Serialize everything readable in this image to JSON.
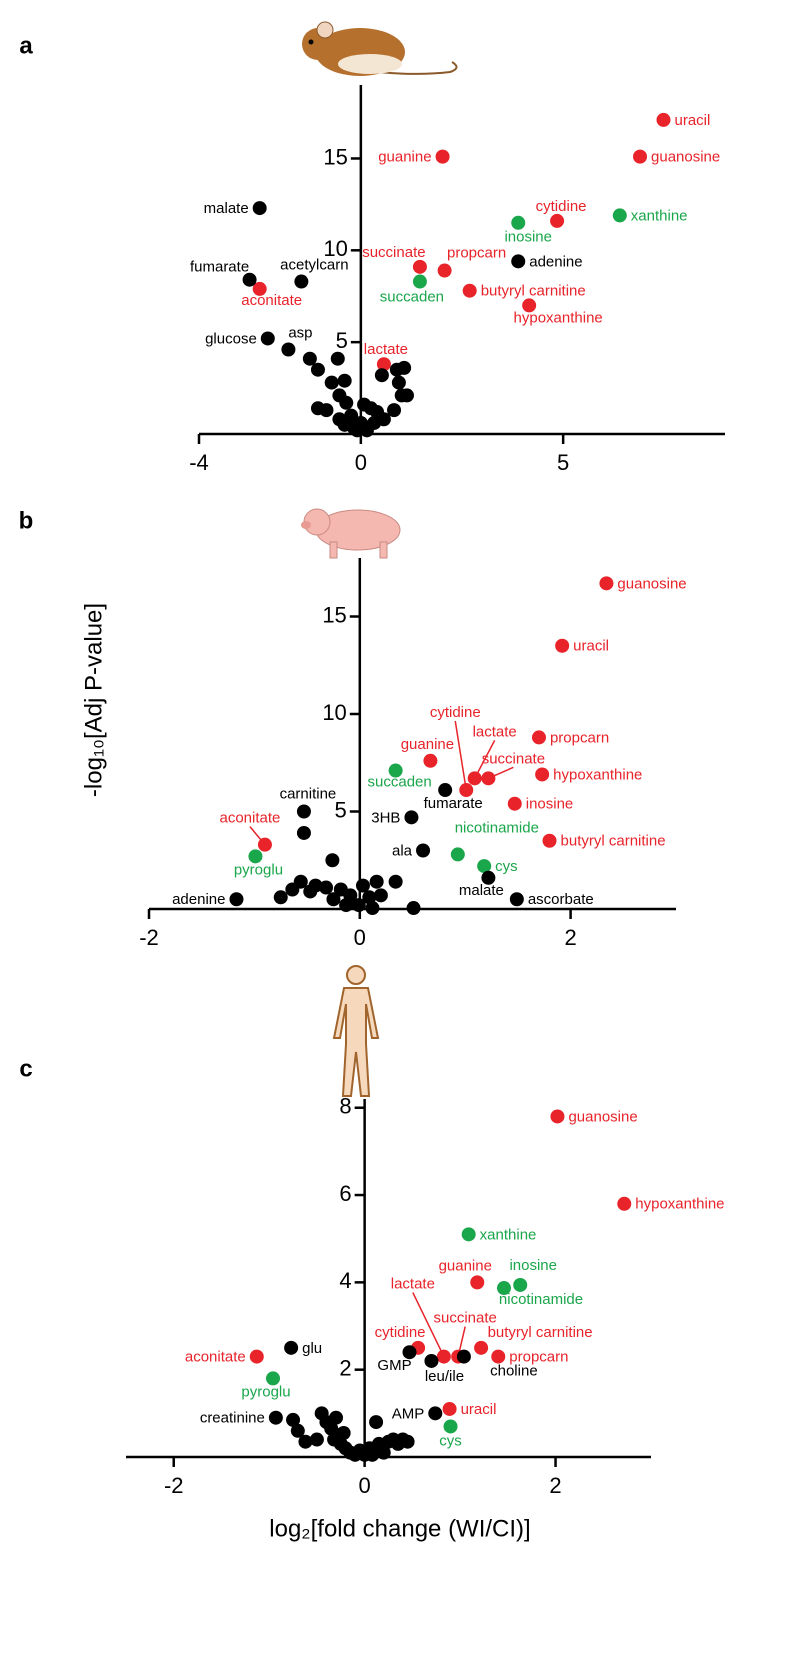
{
  "chart_data": [
    {
      "type": "scatter",
      "panel": "a",
      "xlim": [
        -4,
        9
      ],
      "ylim": [
        0,
        19
      ],
      "xticks": [
        -4,
        0,
        5
      ],
      "yticks": [
        5,
        10,
        15
      ],
      "series": [
        {
          "color": "#e8232a",
          "x": [
            7.48,
            6.9,
            2.02,
            4.85,
            1.46,
            2.07,
            2.69,
            4.16,
            -2.5,
            0.57
          ],
          "values": [
            17.1,
            15.1,
            15.1,
            11.6,
            9.1,
            8.9,
            7.8,
            7.0,
            7.9,
            3.8
          ],
          "labels": [
            "uracil",
            "guanosine",
            "guanine",
            "cytidine",
            "succinate",
            "propcarn",
            "butyryl carnitine",
            "hypoxanthine",
            "aconitate",
            "lactate"
          ]
        },
        {
          "color": "#1aa64b",
          "x": [
            6.4,
            3.89,
            1.46
          ],
          "values": [
            11.9,
            11.5,
            8.3
          ],
          "labels": [
            "xanthine",
            "inosine",
            "succaden"
          ]
        },
        {
          "color": "#000000",
          "x": [
            -2.5,
            3.89,
            -2.75,
            -1.47,
            -2.3,
            -1.79,
            -1.26,
            -1.06,
            -0.57,
            -0.72,
            -0.4,
            -0.53,
            -1.06,
            -0.85,
            -0.36,
            -0.24,
            -0.53,
            -0.16,
            0.0,
            0.15,
            0.33,
            0.25,
            0.4,
            0.57,
            0.89,
            1.07,
            0.94,
            1.01,
            1.14,
            0.82,
            0.08,
            -0.09,
            -0.4,
            0.52
          ],
          "values": [
            12.3,
            9.4,
            8.4,
            8.3,
            5.2,
            4.6,
            4.1,
            3.5,
            4.1,
            2.8,
            2.9,
            2.1,
            1.4,
            1.3,
            1.7,
            1.0,
            0.8,
            0.3,
            0.6,
            0.2,
            0.6,
            1.4,
            1.2,
            0.8,
            3.5,
            3.6,
            2.8,
            2.1,
            2.1,
            1.3,
            1.6,
            0.2,
            0.5,
            3.2
          ],
          "labels": [
            "malate",
            "adenine",
            "fumarate",
            "acetylcarn",
            "glucose",
            "asp",
            null,
            null,
            null,
            null,
            null,
            null,
            null,
            null,
            null,
            null,
            null,
            null,
            null,
            null,
            null,
            null,
            null,
            null,
            null,
            null,
            null,
            null,
            null,
            null,
            null,
            null,
            null,
            null
          ]
        }
      ]
    },
    {
      "type": "scatter",
      "panel": "b",
      "ylabel": "-log₁₀[Adj P-value]",
      "xlim": [
        -2,
        3
      ],
      "ylim": [
        0,
        18
      ],
      "xticks": [
        -2,
        0,
        2
      ],
      "yticks": [
        5,
        10,
        15
      ],
      "series": [
        {
          "color": "#e8232a",
          "x": [
            2.34,
            1.92,
            1.01,
            1.09,
            1.22,
            0.67,
            1.7,
            1.73,
            1.47,
            1.8,
            -0.9
          ],
          "values": [
            16.7,
            13.5,
            6.1,
            6.7,
            6.7,
            7.6,
            8.8,
            6.9,
            5.4,
            3.5,
            3.3
          ],
          "labels": [
            "guanosine",
            "uracil",
            "cytidine",
            "lactate",
            "succinate",
            "guanine",
            "propcarn",
            "hypoxanthine",
            "inosine",
            "butyryl carnitine",
            "aconitate"
          ]
        },
        {
          "color": "#1aa64b",
          "x": [
            0.34,
            0.93,
            1.18,
            -0.99
          ],
          "values": [
            7.1,
            2.8,
            2.2,
            2.7
          ],
          "labels": [
            "succaden",
            "nicotinamide",
            "cys",
            "pyroglu"
          ]
        },
        {
          "color": "#000000",
          "x": [
            -0.53,
            0.81,
            0.49,
            0.6,
            1.22,
            1.49,
            -1.17,
            -0.53,
            -0.26,
            -0.64,
            -0.75,
            -0.56,
            -0.42,
            -0.32,
            -0.18,
            -0.09,
            -0.25,
            -0.13,
            -0.01,
            0.09,
            0.16,
            0.2,
            0.34,
            0.51,
            0.03,
            0.12,
            -0.47
          ],
          "values": [
            5.0,
            6.1,
            4.7,
            3.0,
            1.6,
            0.5,
            0.5,
            3.9,
            2.5,
            1.0,
            0.6,
            1.4,
            1.2,
            1.1,
            1.0,
            0.7,
            0.5,
            0.2,
            0.2,
            0.6,
            1.4,
            0.7,
            1.4,
            0.05,
            1.2,
            0.05,
            0.9
          ],
          "labels": [
            "carnitine",
            "fumarate",
            "3HB",
            "ala",
            "malate",
            "ascorbate",
            "adenine",
            null,
            null,
            null,
            null,
            null,
            null,
            null,
            null,
            null,
            null,
            null,
            null,
            null,
            null,
            null,
            null,
            null,
            null,
            null,
            null
          ]
        }
      ]
    },
    {
      "type": "scatter",
      "panel": "c",
      "xlabel": "log₂[fold change (WI/CI)]",
      "xlim": [
        -2.5,
        3
      ],
      "ylim": [
        0,
        8.2
      ],
      "xticks": [
        -2,
        0,
        2
      ],
      "yticks": [
        2,
        4,
        6,
        8
      ],
      "series": [
        {
          "color": "#e8232a",
          "x": [
            2.02,
            2.72,
            1.18,
            0.83,
            0.98,
            0.56,
            1.22,
            1.4,
            0.89,
            -1.13
          ],
          "values": [
            7.8,
            5.8,
            4.0,
            2.3,
            2.3,
            2.5,
            2.5,
            2.3,
            1.1,
            2.3
          ],
          "labels": [
            "guanosine",
            "hypoxanthine",
            "guanine",
            "lactate",
            "succinate",
            "cytidine",
            "butyryl carnitine",
            "propcarn",
            "uracil",
            "aconitate"
          ]
        },
        {
          "color": "#1aa64b",
          "x": [
            1.09,
            1.63,
            1.46,
            -0.96,
            0.9
          ],
          "values": [
            5.1,
            3.94,
            3.87,
            1.8,
            0.7
          ],
          "labels": [
            "xanthine",
            "inosine",
            "nicotinamide",
            "pyroglu",
            "cys"
          ]
        },
        {
          "color": "#000000",
          "x": [
            -0.77,
            0.47,
            0.7,
            1.04,
            0.74,
            -0.93,
            -0.75,
            -0.7,
            -0.62,
            -0.45,
            -0.4,
            -0.35,
            -0.3,
            -0.28,
            -0.25,
            -0.2,
            -0.15,
            -0.1,
            -0.05,
            0.0,
            0.05,
            0.1,
            0.15,
            0.2,
            0.25,
            0.3,
            0.35,
            0.4,
            0.45,
            0.12,
            -0.32,
            -0.22,
            0.08,
            -0.5
          ],
          "values": [
            2.5,
            2.4,
            2.2,
            2.3,
            1.0,
            0.9,
            0.85,
            0.6,
            0.35,
            1.0,
            0.8,
            0.65,
            0.9,
            0.5,
            0.3,
            0.2,
            0.1,
            0.05,
            0.15,
            0.05,
            0.2,
            0.15,
            0.3,
            0.1,
            0.35,
            0.4,
            0.3,
            0.4,
            0.35,
            0.8,
            0.4,
            0.55,
            0.05,
            0.4
          ],
          "labels": [
            "glu",
            "GMP",
            "leu/ile",
            "choline",
            "AMP",
            "creatinine",
            null,
            null,
            null,
            null,
            null,
            null,
            null,
            null,
            null,
            null,
            null,
            null,
            null,
            null,
            null,
            null,
            null,
            null,
            null,
            null,
            null,
            null,
            null,
            null,
            null,
            null,
            null,
            null
          ]
        }
      ]
    }
  ]
}
